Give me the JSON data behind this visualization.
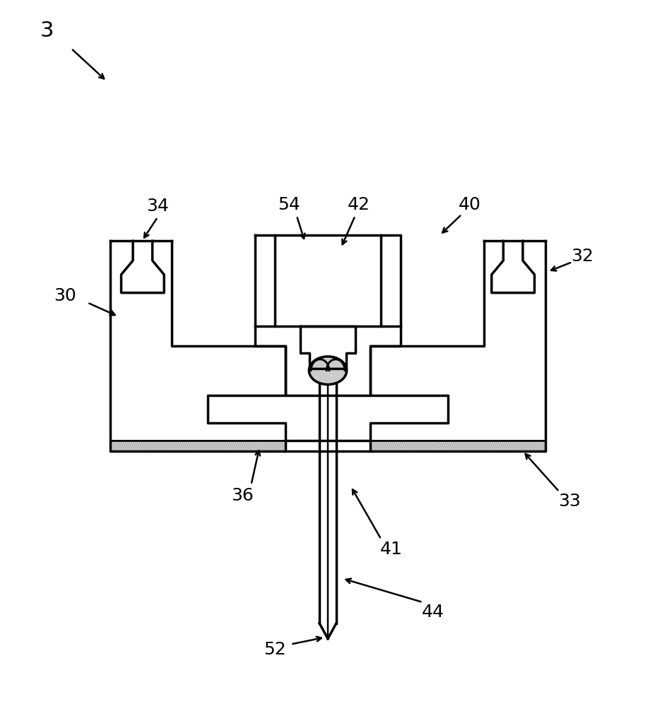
{
  "background_color": "#ffffff",
  "line_color": "#000000",
  "line_width": 2.5,
  "hatch_color": "#aaaaaa",
  "hatch_fill": "#dddddd"
}
